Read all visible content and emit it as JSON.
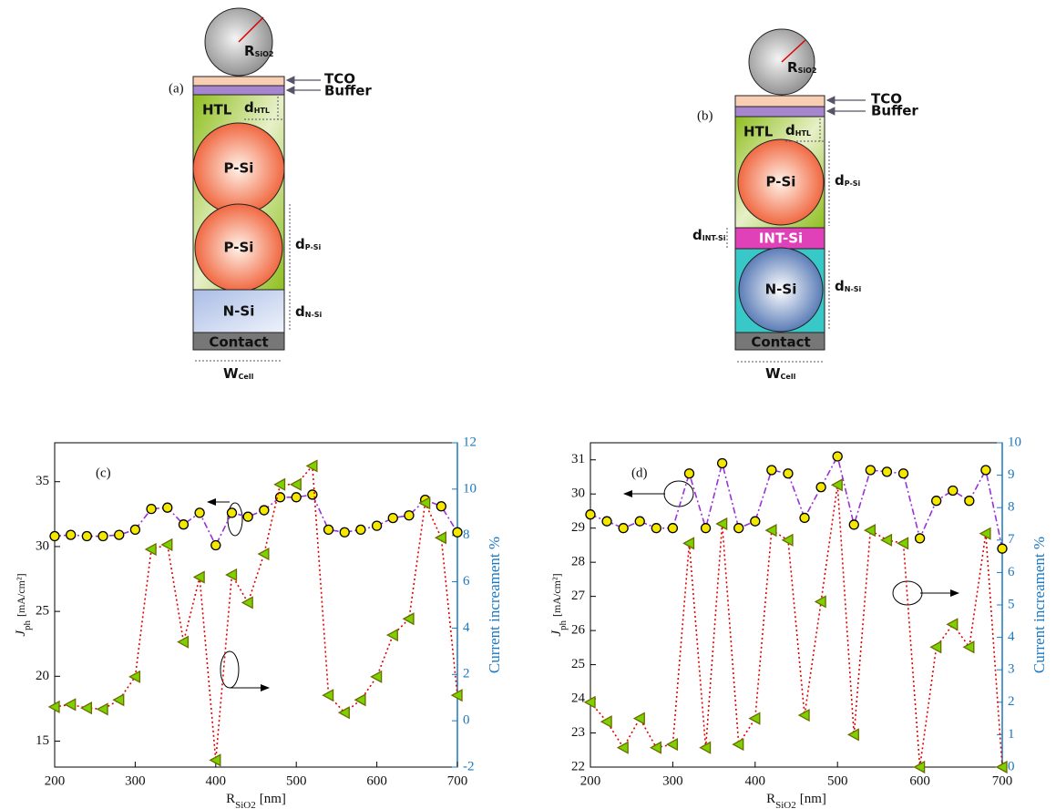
{
  "diagrams": [
    {
      "panel": "(a)",
      "sphere": {
        "main": "R",
        "sub": "SiO2"
      },
      "tco": "TCO",
      "buffer": "Buffer",
      "htl": "HTL",
      "d_htl": {
        "main": "d",
        "sub": "HTL"
      },
      "p_si": [
        "P-Si",
        "P-Si"
      ],
      "n_si": "N-Si",
      "d_p_si": {
        "main": "d",
        "sub": "P-Si"
      },
      "d_n_si": {
        "main": "d",
        "sub": "N-Si"
      },
      "contact": "Contact",
      "w_cell": {
        "main": "W",
        "sub": "Cell"
      }
    },
    {
      "panel": "(b)",
      "sphere": {
        "main": "R",
        "sub": "SiO2"
      },
      "tco": "TCO",
      "buffer": "Buffer",
      "htl": "HTL",
      "d_htl": {
        "main": "d",
        "sub": "HTL"
      },
      "p_si": [
        "P-Si"
      ],
      "int_si": "INT-Si",
      "n_si": "N-Si",
      "d_p_si": {
        "main": "d",
        "sub": "P-Si"
      },
      "d_int_si": {
        "main": "d",
        "sub": "INT-Si"
      },
      "d_n_si": {
        "main": "d",
        "sub": "N-Si"
      },
      "contact": "Contact",
      "w_cell": {
        "main": "W",
        "sub": "Cell"
      }
    }
  ],
  "chart_data": [
    {
      "type": "line",
      "panel_label": "(c)",
      "x": [
        200,
        220,
        240,
        260,
        280,
        300,
        320,
        340,
        360,
        380,
        400,
        420,
        440,
        460,
        480,
        500,
        520,
        540,
        560,
        580,
        600,
        620,
        640,
        660,
        680,
        700
      ],
      "xlim": [
        200,
        700
      ],
      "xticks": [
        200,
        300,
        400,
        500,
        600,
        700
      ],
      "ylim": [
        13,
        38
      ],
      "yticks": [
        15,
        20,
        25,
        30,
        35
      ],
      "y2lim": [
        -2,
        12
      ],
      "y2ticks": [
        -2,
        0,
        2,
        4,
        6,
        8,
        10,
        12
      ],
      "y2_color": "#1a78c2",
      "x_label": {
        "main": "R",
        "sub": "SiO2",
        "unit": "[nm]"
      },
      "y_label": {
        "main": "J",
        "sub": "ph",
        "unit": "[mA/cm²]"
      },
      "y2_label": "Current increament %",
      "series": [
        {
          "color": "#9b30d9",
          "marker_color": "#f5e800",
          "marker": "circle",
          "line_style": "dashdot",
          "values": [
            30.8,
            30.9,
            30.8,
            30.8,
            30.9,
            31.3,
            32.9,
            33.0,
            31.7,
            32.6,
            30.1,
            32.6,
            32.3,
            32.8,
            33.8,
            33.8,
            34.0,
            31.3,
            31.1,
            31.3,
            31.6,
            32.2,
            32.4,
            33.6,
            33.1,
            31.1
          ]
        },
        {
          "axis": "y2",
          "color": "#e00000",
          "marker_color": "#7dd100",
          "marker": "triangle-left",
          "line_style": "dotted",
          "values": [
            0.6,
            0.7,
            0.55,
            0.5,
            0.9,
            1.9,
            7.4,
            7.6,
            3.4,
            6.2,
            -1.7,
            6.3,
            5.1,
            7.2,
            10.2,
            10.2,
            11.0,
            1.1,
            0.35,
            0.9,
            1.9,
            3.7,
            4.4,
            9.4,
            7.9,
            1.1
          ]
        }
      ]
    },
    {
      "type": "line",
      "panel_label": "(d)",
      "x": [
        200,
        220,
        240,
        260,
        280,
        300,
        320,
        340,
        360,
        380,
        400,
        420,
        440,
        460,
        480,
        500,
        520,
        540,
        560,
        580,
        600,
        620,
        640,
        660,
        680,
        700
      ],
      "xlim": [
        200,
        700
      ],
      "xticks": [
        200,
        300,
        400,
        500,
        600,
        700
      ],
      "ylim": [
        22,
        31.5
      ],
      "yticks": [
        22,
        23,
        24,
        25,
        26,
        27,
        28,
        29,
        30,
        31
      ],
      "y2lim": [
        0,
        10
      ],
      "y2ticks": [
        0,
        1,
        2,
        3,
        4,
        5,
        6,
        7,
        8,
        9,
        10
      ],
      "y2_color": "#1a78c2",
      "x_label": {
        "main": "R",
        "sub": "SiO2",
        "unit": "[nm]"
      },
      "y_label": {
        "main": "J",
        "sub": "ph",
        "unit": "[mA/cm²]"
      },
      "y2_label": "Current increament %",
      "series": [
        {
          "color": "#9b30d9",
          "marker_color": "#f5e800",
          "marker": "circle",
          "line_style": "dashdot",
          "values": [
            29.4,
            29.2,
            29.0,
            29.2,
            29.0,
            29.0,
            30.6,
            29.0,
            30.9,
            29.0,
            29.2,
            30.7,
            30.6,
            29.3,
            30.2,
            31.1,
            29.1,
            30.7,
            30.65,
            30.6,
            28.7,
            29.8,
            30.1,
            29.8,
            30.7,
            28.4
          ]
        },
        {
          "axis": "y2",
          "color": "#e00000",
          "marker_color": "#7dd100",
          "marker": "triangle-left",
          "line_style": "dotted",
          "values": [
            2.0,
            1.4,
            0.6,
            1.5,
            0.6,
            0.7,
            6.9,
            0.6,
            7.5,
            0.7,
            1.5,
            7.3,
            7.0,
            1.6,
            5.1,
            8.7,
            1.0,
            7.3,
            7.0,
            6.9,
            0.0,
            3.7,
            4.4,
            3.7,
            7.2,
            0.0
          ]
        }
      ]
    }
  ]
}
